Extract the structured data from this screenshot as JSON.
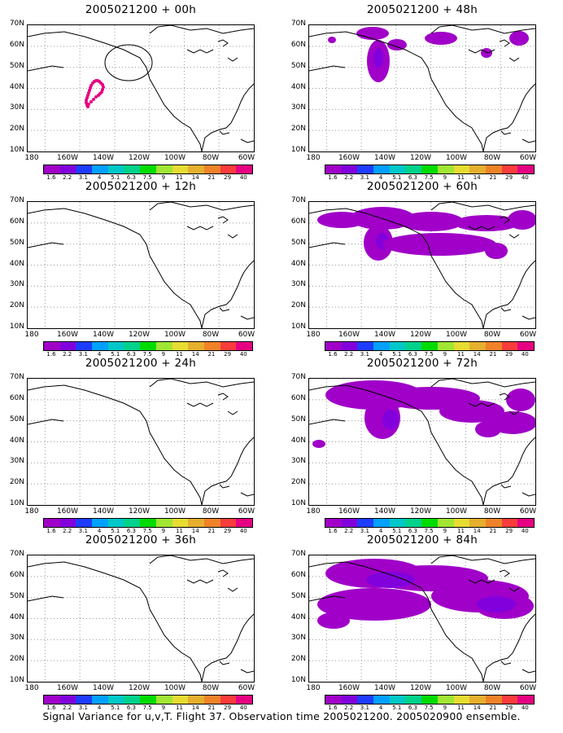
{
  "panels": [
    {
      "title": "2005021200 + 00h"
    },
    {
      "title": "2005021200 + 48h"
    },
    {
      "title": "2005021200 + 12h"
    },
    {
      "title": "2005021200 + 60h"
    },
    {
      "title": "2005021200 + 24h"
    },
    {
      "title": "2005021200 + 72h"
    },
    {
      "title": "2005021200 + 36h"
    },
    {
      "title": "2005021200 + 84h"
    }
  ],
  "y_axis_labels": [
    "70N",
    "60N",
    "50N",
    "40N",
    "30N",
    "20N",
    "10N"
  ],
  "x_axis_labels": [
    "180",
    "160W",
    "140W",
    "120W",
    "100W",
    "80W",
    "60W"
  ],
  "colorbar": {
    "labels": [
      "1.6",
      "2.2",
      "3.1",
      "4",
      "5.1",
      "6.3",
      "7.5",
      "9",
      "11",
      "14",
      "21",
      "29",
      "40"
    ],
    "colors": [
      "#a000c8",
      "#8200dc",
      "#1e3cff",
      "#00a0ff",
      "#00c8c8",
      "#00d28c",
      "#00dc00",
      "#a0e632",
      "#e6dc32",
      "#e6af2d",
      "#f08228",
      "#fa3c3c",
      "#e60082"
    ]
  },
  "shading_colors": {
    "light": "#a000c8",
    "dark": "#8200dc",
    "deep": "#5a2ad6",
    "dots": "#e60082"
  },
  "caption": "Signal Variance for u,v,T. Flight 37. Observation time 2005021200. 2005020900 ensemble."
}
